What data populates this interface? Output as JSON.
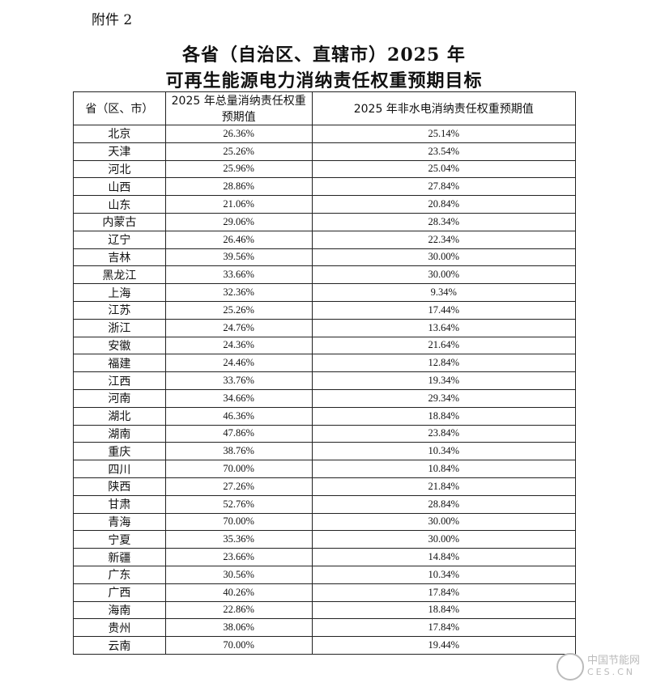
{
  "attachment_label": "附件 2",
  "title_line1": "各省（自治区、直辖市）2025 年",
  "title_line2": "可再生能源电力消纳责任权重预期目标",
  "table": {
    "headers": [
      "省（区、市）",
      "2025 年总量消纳责任权重预期值",
      "2025 年非水电消纳责任权重预期值"
    ],
    "rows": [
      [
        "北京",
        "26.36%",
        "25.14%"
      ],
      [
        "天津",
        "25.26%",
        "23.54%"
      ],
      [
        "河北",
        "25.96%",
        "25.04%"
      ],
      [
        "山西",
        "28.86%",
        "27.84%"
      ],
      [
        "山东",
        "21.06%",
        "20.84%"
      ],
      [
        "内蒙古",
        "29.06%",
        "28.34%"
      ],
      [
        "辽宁",
        "26.46%",
        "22.34%"
      ],
      [
        "吉林",
        "39.56%",
        "30.00%"
      ],
      [
        "黑龙江",
        "33.66%",
        "30.00%"
      ],
      [
        "上海",
        "32.36%",
        "9.34%"
      ],
      [
        "江苏",
        "25.26%",
        "17.44%"
      ],
      [
        "浙江",
        "24.76%",
        "13.64%"
      ],
      [
        "安徽",
        "24.36%",
        "21.64%"
      ],
      [
        "福建",
        "24.46%",
        "12.84%"
      ],
      [
        "江西",
        "33.76%",
        "19.34%"
      ],
      [
        "河南",
        "34.66%",
        "29.34%"
      ],
      [
        "湖北",
        "46.36%",
        "18.84%"
      ],
      [
        "湖南",
        "47.86%",
        "23.84%"
      ],
      [
        "重庆",
        "38.76%",
        "10.34%"
      ],
      [
        "四川",
        "70.00%",
        "10.84%"
      ],
      [
        "陕西",
        "27.26%",
        "21.84%"
      ],
      [
        "甘肃",
        "52.76%",
        "28.84%"
      ],
      [
        "青海",
        "70.00%",
        "30.00%"
      ],
      [
        "宁夏",
        "35.36%",
        "30.00%"
      ],
      [
        "新疆",
        "23.66%",
        "14.84%"
      ],
      [
        "广东",
        "30.56%",
        "10.34%"
      ],
      [
        "广西",
        "40.26%",
        "17.84%"
      ],
      [
        "海南",
        "22.86%",
        "18.84%"
      ],
      [
        "贵州",
        "38.06%",
        "17.84%"
      ],
      [
        "云南",
        "70.00%",
        "19.44%"
      ]
    ]
  },
  "watermark": {
    "cn": "中国节能网",
    "en": "CES.CN"
  }
}
